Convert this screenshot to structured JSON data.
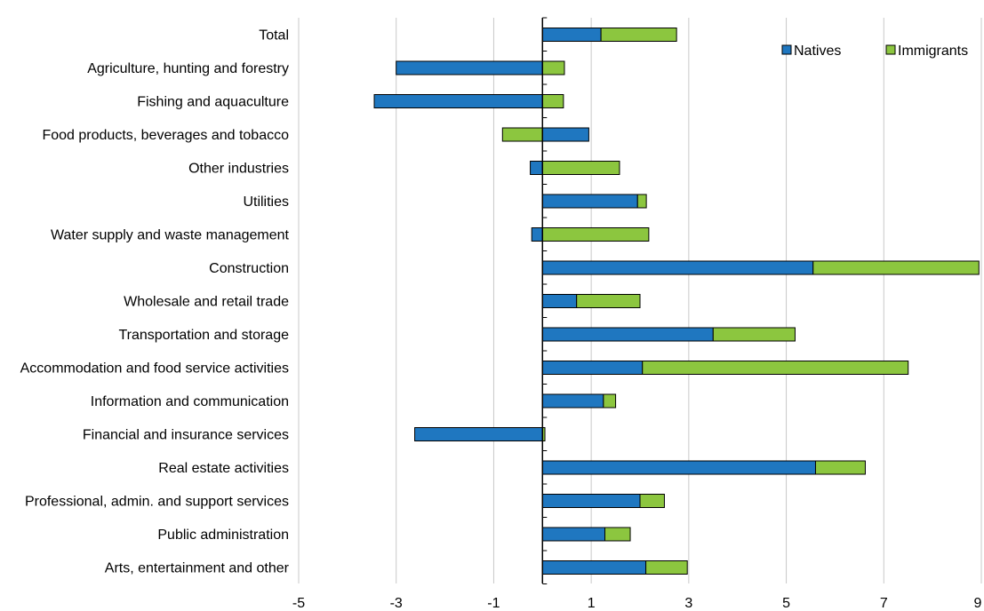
{
  "chart_data": {
    "type": "bar",
    "orientation": "horizontal",
    "stacked": true,
    "categories": [
      "Total",
      "Agriculture, hunting and forestry",
      "Fishing and aquaculture",
      "Food products, beverages and tobacco",
      "Other industries",
      "Utilities",
      "Water supply and waste management",
      "Construction",
      "Wholesale and retail trade",
      "Transportation and storage",
      "Accommodation and food service activities",
      "Information and communication",
      "Financial and insurance services",
      "Real estate activities",
      "Professional, admin. and support services",
      "Public administration",
      "Arts, entertainment and other"
    ],
    "series": [
      {
        "name": "Natives",
        "color": "#1f77c0",
        "values": [
          1.2,
          -3.0,
          -3.45,
          0.95,
          -0.25,
          1.95,
          -0.22,
          5.55,
          0.7,
          3.5,
          2.05,
          1.25,
          -2.62,
          5.6,
          2.0,
          1.28,
          2.12
        ]
      },
      {
        "name": "Immigrants",
        "color": "#8cc63f",
        "values": [
          1.55,
          0.45,
          0.43,
          -0.82,
          1.58,
          0.18,
          2.18,
          3.4,
          1.3,
          1.68,
          5.45,
          0.25,
          0.05,
          1.02,
          0.5,
          0.52,
          0.85
        ]
      }
    ],
    "xlim": [
      -5,
      9
    ],
    "xticks": [
      "-5",
      "-3",
      "-1",
      "1",
      "3",
      "5",
      "7",
      "9"
    ],
    "grid": "vertical",
    "legend": "top-right",
    "title": "",
    "xlabel": "",
    "ylabel": ""
  }
}
